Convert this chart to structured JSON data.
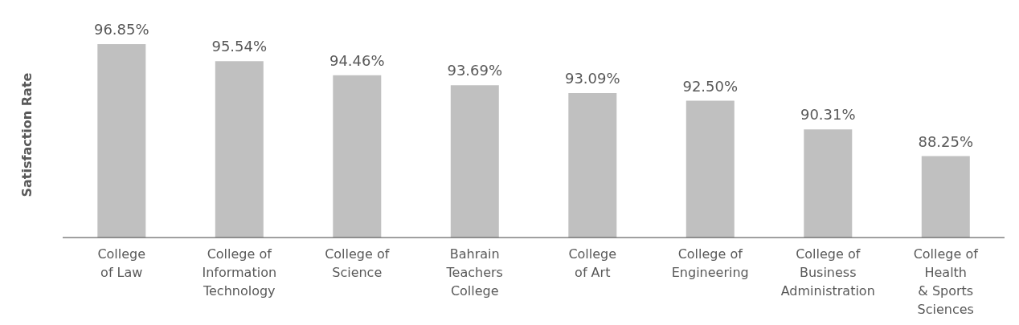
{
  "chart_data": {
    "type": "bar",
    "ylabel": "Satisfaction Rate",
    "categories": [
      "College\nof Law",
      "College of\nInformation\nTechnology",
      "College of\nScience",
      "Bahrain\nTeachers\nCollege",
      "College\nof Art",
      "College of\nEngineering",
      "College of\nBusiness\nAdministration",
      "College of\nHealth\n& Sports\nSciences"
    ],
    "values": [
      96.85,
      95.54,
      94.46,
      93.69,
      93.09,
      92.5,
      90.31,
      88.25
    ],
    "value_labels": [
      "96.85%",
      "95.54%",
      "94.46%",
      "93.69%",
      "93.09%",
      "92.50%",
      "90.31%",
      "88.25%"
    ],
    "color": "#c0c0c0",
    "ylim": [
      82,
      96.85
    ],
    "tick_labels": "x"
  }
}
